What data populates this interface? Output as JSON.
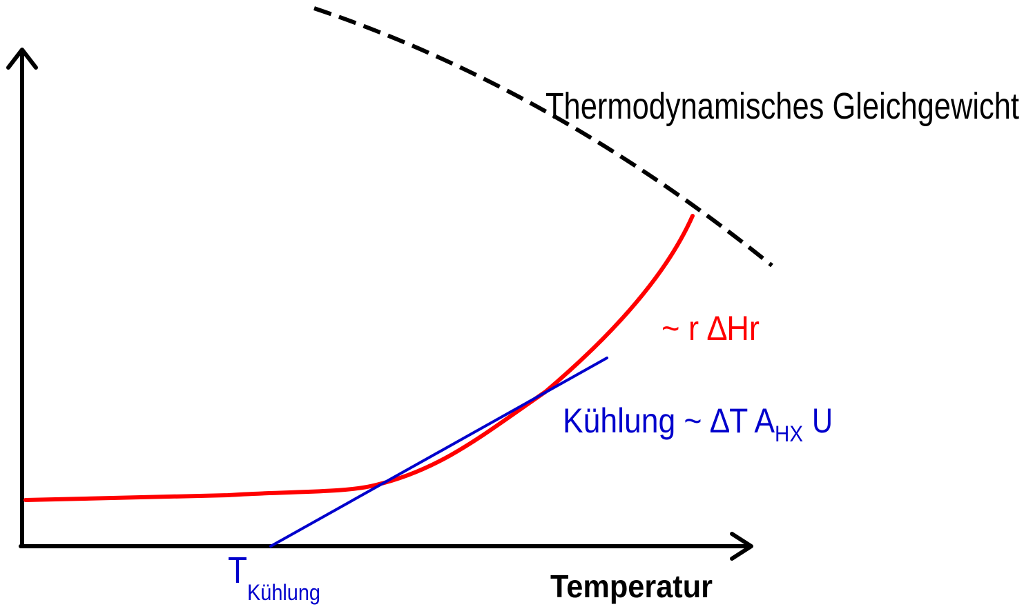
{
  "labels": {
    "equilibrium": "Thermodynamisches Gleichgewicht",
    "heat_generation": "~ r ∆Hr",
    "cooling_main": "Kühlung ~ ∆T A",
    "cooling_sub": "HX",
    "cooling_tail": "U",
    "t_cooling_main": "T",
    "t_cooling_sub": "Kühlung",
    "x_axis": "Temperatur"
  },
  "colors": {
    "axes": "#000000",
    "equilibrium": "#000000",
    "heat_generation": "#ff0000",
    "cooling": "#0000cc"
  }
}
